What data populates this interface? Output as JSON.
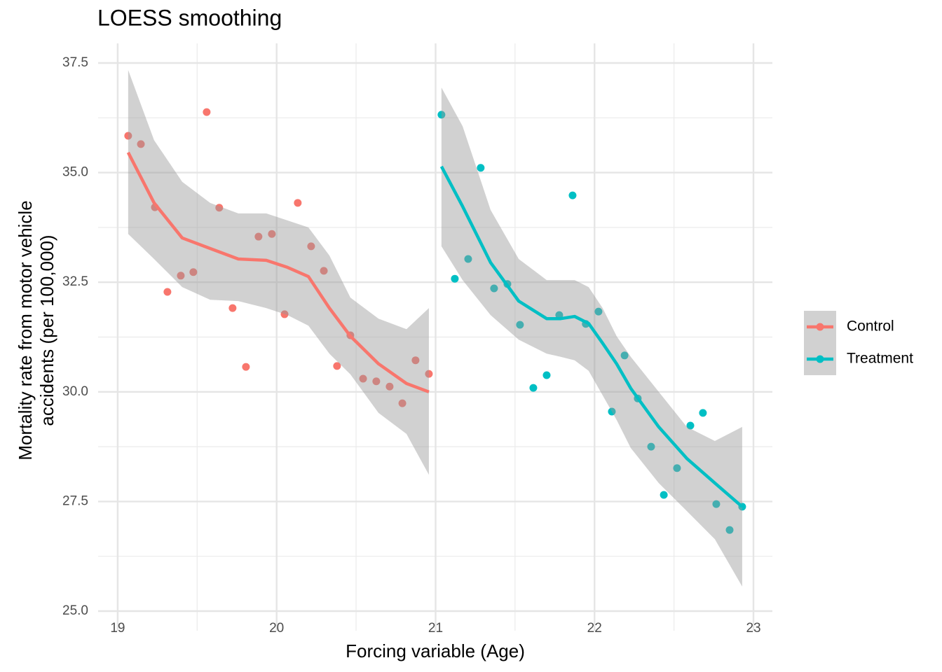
{
  "chart_data": {
    "type": "scatter-loess",
    "title": "LOESS smoothing",
    "xlabel": "Forcing variable (Age)",
    "ylabel": [
      "Mortality rate from motor vehicle",
      "accidents (per 100,000)"
    ],
    "xlim": [
      18.877,
      23.119
    ],
    "ylim": [
      24.553,
      37.947
    ],
    "xticks": [
      19,
      20,
      21,
      22,
      23
    ],
    "yticks": [
      {
        "value": 25,
        "label": "25.0"
      },
      {
        "value": 27.5,
        "label": "27.5"
      },
      {
        "value": 30,
        "label": "30.0"
      },
      {
        "value": 32.5,
        "label": "32.5"
      },
      {
        "value": 35,
        "label": "35.0"
      },
      {
        "value": 37.5,
        "label": "37.5"
      }
    ],
    "xminor": [
      19.5,
      20.5,
      21.5,
      22.5
    ],
    "yminor": [
      26.25,
      28.75,
      31.25,
      33.75,
      36.25
    ],
    "grid": true,
    "legend": "right",
    "ribbon_color": "#999999",
    "series": [
      {
        "name": "Control",
        "color": "#F8766D",
        "x": [
          19.066,
          19.146,
          19.234,
          19.313,
          19.397,
          19.476,
          19.56,
          19.639,
          19.723,
          19.807,
          19.886,
          19.97,
          20.05,
          20.133,
          20.217,
          20.297,
          20.38,
          20.464,
          20.544,
          20.627,
          20.711,
          20.791,
          20.874,
          20.958
        ],
        "y": [
          35.84,
          35.65,
          34.21,
          32.28,
          32.65,
          32.73,
          36.38,
          34.2,
          31.91,
          30.57,
          33.54,
          33.6,
          31.77,
          34.31,
          33.32,
          32.76,
          30.59,
          31.29,
          30.3,
          30.24,
          30.12,
          29.74,
          30.72,
          30.41
        ],
        "smooth": {
          "x": [
            19.066,
            19.229,
            19.406,
            19.582,
            19.759,
            19.935,
            20.068,
            20.2,
            20.332,
            20.464,
            20.641,
            20.817,
            20.958
          ],
          "y": [
            35.46,
            34.31,
            33.51,
            33.27,
            33.03,
            33.0,
            32.84,
            32.63,
            31.91,
            31.27,
            30.64,
            30.19,
            30.0
          ],
          "upper": [
            37.34,
            35.74,
            34.79,
            34.31,
            34.07,
            34.07,
            33.91,
            33.75,
            33.11,
            32.15,
            31.67,
            31.43,
            31.91
          ],
          "lower": [
            33.6,
            33.03,
            32.39,
            32.1,
            32.07,
            31.91,
            31.75,
            31.51,
            30.87,
            30.4,
            29.52,
            29.04,
            28.11
          ]
        }
      },
      {
        "name": "Treatment",
        "color": "#00BFC4",
        "x": [
          21.037,
          21.121,
          21.205,
          21.284,
          21.368,
          21.452,
          21.531,
          21.615,
          21.699,
          21.778,
          21.862,
          21.945,
          22.025,
          22.109,
          22.189,
          22.272,
          22.356,
          22.436,
          22.519,
          22.603,
          22.682,
          22.766,
          22.85,
          22.929
        ],
        "y": [
          36.32,
          32.58,
          33.03,
          35.11,
          32.36,
          32.46,
          31.53,
          30.09,
          30.38,
          31.75,
          34.48,
          31.55,
          31.83,
          29.55,
          30.83,
          29.85,
          28.75,
          27.65,
          28.26,
          29.23,
          29.52,
          27.44,
          26.85,
          27.38
        ],
        "smooth": {
          "x": [
            21.037,
            21.17,
            21.346,
            21.523,
            21.699,
            21.787,
            21.875,
            21.963,
            22.051,
            22.139,
            22.228,
            22.404,
            22.581,
            22.757,
            22.929
          ],
          "y": [
            35.14,
            34.23,
            32.95,
            32.07,
            31.67,
            31.67,
            31.72,
            31.56,
            31.11,
            30.64,
            30.08,
            29.2,
            28.48,
            27.92,
            27.38
          ],
          "upper": [
            36.94,
            36.06,
            34.15,
            33.03,
            32.55,
            32.55,
            32.55,
            32.39,
            31.91,
            31.27,
            30.8,
            30.0,
            29.2,
            28.88,
            29.2
          ],
          "lower": [
            33.32,
            32.55,
            31.75,
            31.19,
            30.87,
            30.8,
            30.72,
            30.48,
            29.92,
            29.36,
            28.72,
            27.92,
            27.28,
            26.64,
            25.56
          ]
        }
      }
    ]
  }
}
